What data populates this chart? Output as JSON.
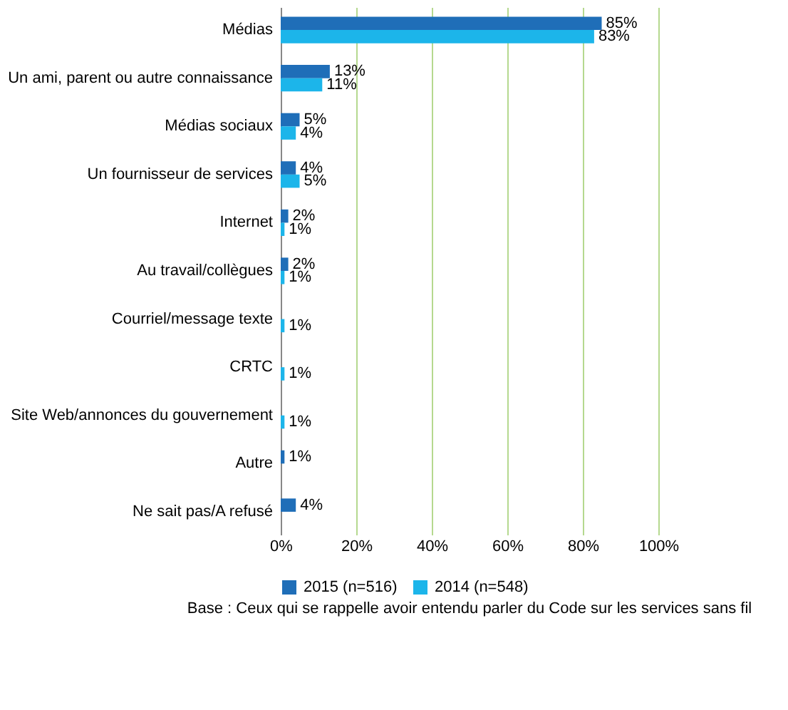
{
  "chart_data": {
    "type": "bar",
    "orientation": "horizontal",
    "categories": [
      "Médias",
      "Un ami, parent ou autre connaissance",
      "Médias sociaux",
      "Un fournisseur de services",
      "Internet",
      "Au travail/collègues",
      "Courriel/message texte",
      "CRTC",
      "Site Web/annonces du gouvernement",
      "Autre",
      "Ne sait pas/A refusé"
    ],
    "series": [
      {
        "name": "2015 (n=516)",
        "color": "#1f6eb8",
        "values": [
          85,
          13,
          5,
          4,
          2,
          2,
          null,
          null,
          null,
          1,
          4
        ],
        "value_labels": [
          "85%",
          "13%",
          "5%",
          "4%",
          "2%",
          "2%",
          null,
          null,
          null,
          "1%",
          "4%"
        ]
      },
      {
        "name": "2014 (n=548)",
        "color": "#1cb5ea",
        "values": [
          83,
          11,
          4,
          5,
          1,
          1,
          1,
          1,
          1,
          null,
          null
        ],
        "value_labels": [
          "83%",
          "11%",
          "4%",
          "5%",
          "1%",
          "1%",
          "1%",
          "1%",
          "1%",
          null,
          null
        ]
      }
    ],
    "xlim": [
      0,
      100
    ],
    "xticks": [
      {
        "value": 0,
        "label": "0%"
      },
      {
        "value": 20,
        "label": "20%"
      },
      {
        "value": 40,
        "label": "40%"
      },
      {
        "value": 60,
        "label": "60%"
      },
      {
        "value": 80,
        "label": "80%"
      },
      {
        "value": 100,
        "label": "100%"
      }
    ],
    "grid": "x",
    "legend": "bottom",
    "annotations": [
      "Base : Ceux qui se rappelle avoir entendu parler du Code sur les services sans fil"
    ]
  }
}
